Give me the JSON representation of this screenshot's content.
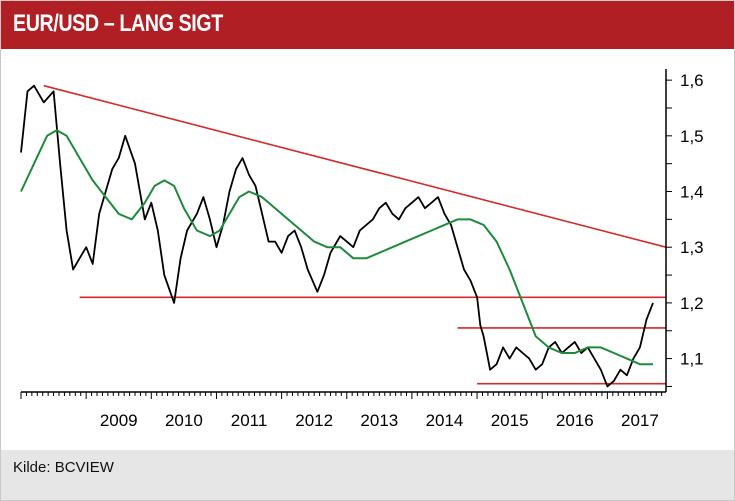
{
  "header": {
    "title": "EUR/USD – LANG SIGT"
  },
  "footer": {
    "source": "Kilde: BCVIEW"
  },
  "colors": {
    "accent": "#b01f24",
    "price": "#000000",
    "moving_average": "#1e8a3c",
    "trendline": "#d42a2a",
    "footer_bg": "#e6e6e6"
  },
  "chart_data": {
    "type": "line",
    "x_tick_labels": [
      "2009",
      "2010",
      "2011",
      "2012",
      "2013",
      "2014",
      "2015",
      "2016",
      "2017"
    ],
    "y_tick_labels": [
      "1,6",
      "1,5",
      "1,4",
      "1,3",
      "1,2",
      "1,1"
    ],
    "y_ticks": [
      1.6,
      1.5,
      1.4,
      1.3,
      1.2,
      1.1
    ],
    "xlim": [
      2008.0,
      2017.9
    ],
    "ylim": [
      1.04,
      1.62
    ],
    "y_axis_side": "right",
    "grid": false,
    "series": [
      {
        "role": "price",
        "color": "#000000",
        "x": [
          2008.0,
          2008.1,
          2008.2,
          2008.35,
          2008.5,
          2008.6,
          2008.7,
          2008.8,
          2008.9,
          2009.0,
          2009.1,
          2009.2,
          2009.3,
          2009.4,
          2009.5,
          2009.6,
          2009.75,
          2009.9,
          2010.0,
          2010.1,
          2010.2,
          2010.35,
          2010.45,
          2010.55,
          2010.7,
          2010.8,
          2010.9,
          2011.0,
          2011.1,
          2011.2,
          2011.3,
          2011.4,
          2011.5,
          2011.6,
          2011.7,
          2011.8,
          2011.9,
          2012.0,
          2012.1,
          2012.2,
          2012.3,
          2012.4,
          2012.55,
          2012.65,
          2012.75,
          2012.9,
          2013.0,
          2013.1,
          2013.2,
          2013.3,
          2013.4,
          2013.5,
          2013.6,
          2013.7,
          2013.8,
          2013.9,
          2014.0,
          2014.1,
          2014.2,
          2014.3,
          2014.4,
          2014.5,
          2014.6,
          2014.7,
          2014.8,
          2014.9,
          2015.0,
          2015.05,
          2015.1,
          2015.2,
          2015.3,
          2015.4,
          2015.5,
          2015.6,
          2015.7,
          2015.8,
          2015.9,
          2016.0,
          2016.1,
          2016.2,
          2016.3,
          2016.4,
          2016.5,
          2016.6,
          2016.7,
          2016.8,
          2016.9,
          2017.0,
          2017.1,
          2017.2,
          2017.3,
          2017.4,
          2017.5,
          2017.6,
          2017.7
        ],
        "y": [
          1.47,
          1.58,
          1.59,
          1.56,
          1.58,
          1.45,
          1.33,
          1.26,
          1.28,
          1.3,
          1.27,
          1.36,
          1.4,
          1.44,
          1.46,
          1.5,
          1.45,
          1.35,
          1.38,
          1.33,
          1.25,
          1.2,
          1.28,
          1.33,
          1.36,
          1.39,
          1.35,
          1.3,
          1.34,
          1.4,
          1.44,
          1.46,
          1.43,
          1.41,
          1.36,
          1.31,
          1.31,
          1.29,
          1.32,
          1.33,
          1.3,
          1.26,
          1.22,
          1.25,
          1.29,
          1.32,
          1.31,
          1.3,
          1.33,
          1.34,
          1.35,
          1.37,
          1.38,
          1.36,
          1.35,
          1.37,
          1.38,
          1.39,
          1.37,
          1.38,
          1.39,
          1.36,
          1.34,
          1.3,
          1.26,
          1.24,
          1.21,
          1.16,
          1.14,
          1.08,
          1.09,
          1.12,
          1.1,
          1.12,
          1.11,
          1.1,
          1.08,
          1.09,
          1.12,
          1.13,
          1.11,
          1.12,
          1.13,
          1.11,
          1.12,
          1.1,
          1.08,
          1.05,
          1.06,
          1.08,
          1.07,
          1.1,
          1.12,
          1.17,
          1.2
        ]
      },
      {
        "role": "moving-average",
        "color": "#1e8a3c",
        "x": [
          2008.0,
          2008.2,
          2008.4,
          2008.55,
          2008.7,
          2008.9,
          2009.1,
          2009.3,
          2009.5,
          2009.7,
          2009.9,
          2010.05,
          2010.2,
          2010.35,
          2010.5,
          2010.7,
          2010.9,
          2011.05,
          2011.2,
          2011.35,
          2011.5,
          2011.7,
          2011.9,
          2012.1,
          2012.3,
          2012.5,
          2012.7,
          2012.9,
          2013.1,
          2013.3,
          2013.5,
          2013.7,
          2013.9,
          2014.1,
          2014.3,
          2014.5,
          2014.7,
          2014.9,
          2015.1,
          2015.3,
          2015.5,
          2015.7,
          2015.9,
          2016.1,
          2016.3,
          2016.5,
          2016.7,
          2016.9,
          2017.1,
          2017.3,
          2017.5,
          2017.7
        ],
        "y": [
          1.4,
          1.45,
          1.5,
          1.51,
          1.5,
          1.46,
          1.42,
          1.39,
          1.36,
          1.35,
          1.38,
          1.41,
          1.42,
          1.41,
          1.37,
          1.33,
          1.32,
          1.33,
          1.36,
          1.39,
          1.4,
          1.39,
          1.37,
          1.35,
          1.33,
          1.31,
          1.3,
          1.3,
          1.28,
          1.28,
          1.29,
          1.3,
          1.31,
          1.32,
          1.33,
          1.34,
          1.35,
          1.35,
          1.34,
          1.31,
          1.26,
          1.2,
          1.14,
          1.12,
          1.11,
          1.11,
          1.12,
          1.12,
          1.11,
          1.1,
          1.09,
          1.09
        ]
      }
    ],
    "trendlines": [
      {
        "role": "long-term-resistance",
        "x": [
          2008.35,
          2017.9
        ],
        "y": [
          1.59,
          1.3
        ]
      }
    ],
    "horizontal_lines": [
      {
        "y": 1.21,
        "x_start": 2008.9,
        "x_end": 2017.9
      },
      {
        "y": 1.155,
        "x_start": 2014.7,
        "x_end": 2017.9
      },
      {
        "y": 1.055,
        "x_start": 2015.0,
        "x_end": 2017.9
      }
    ]
  }
}
